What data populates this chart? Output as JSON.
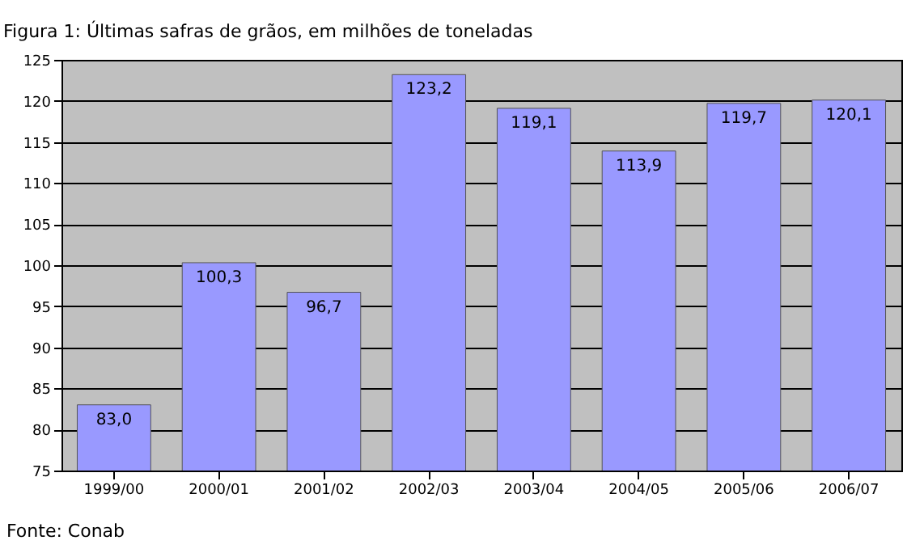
{
  "chart_data": {
    "type": "bar",
    "title": "Figura 1: Últimas safras de grãos, em milhões de toneladas",
    "categories": [
      "1999/00",
      "2000/01",
      "2001/02",
      "2002/03",
      "2003/04",
      "2004/05",
      "2005/06",
      "2006/07"
    ],
    "values": [
      83.0,
      100.3,
      96.7,
      123.2,
      119.1,
      113.9,
      119.7,
      120.1
    ],
    "value_labels": [
      "83,0",
      "100,3",
      "96,7",
      "123,2",
      "119,1",
      "113,9",
      "119,7",
      "120,1"
    ],
    "color": "#9999ff",
    "ylim": [
      75,
      125
    ],
    "yticks": [
      75,
      80,
      85,
      90,
      95,
      100,
      105,
      110,
      115,
      120,
      125
    ],
    "grid": "y",
    "annotations": [
      "Fonte: Conab"
    ]
  }
}
